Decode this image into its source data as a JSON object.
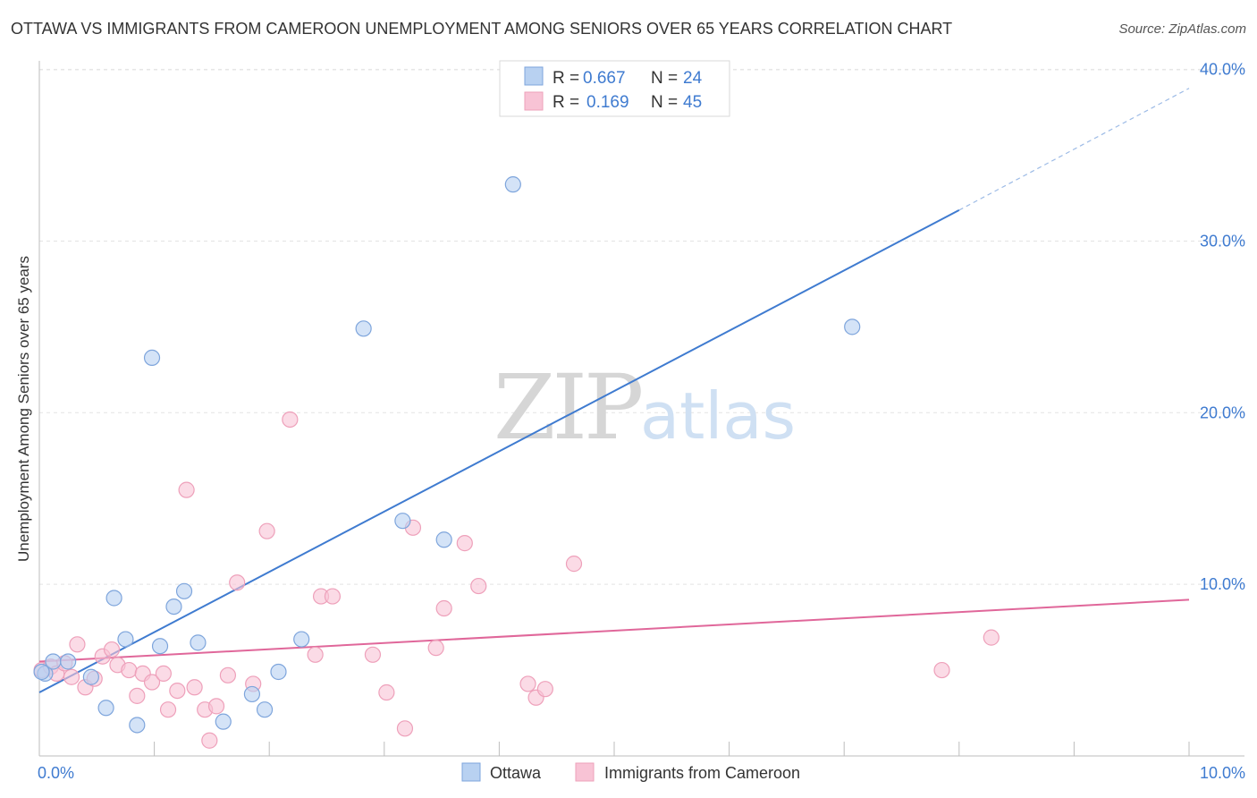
{
  "title": "OTTAWA VS IMMIGRANTS FROM CAMEROON UNEMPLOYMENT AMONG SENIORS OVER 65 YEARS CORRELATION CHART",
  "source": "Source: ZipAtlas.com",
  "watermark": {
    "zip": "ZIP",
    "atlas": "atlas"
  },
  "chart_data": {
    "type": "scatter",
    "title": "OTTAWA VS IMMIGRANTS FROM CAMEROON UNEMPLOYMENT AMONG SENIORS OVER 65 YEARS CORRELATION CHART",
    "xlabel": "",
    "ylabel": "Unemployment Among Seniors over 65 years",
    "xlim": [
      0,
      10
    ],
    "ylim": [
      0,
      40.5
    ],
    "x_tick_labels": [
      {
        "value": 0,
        "label": "0.0%"
      },
      {
        "value": 10,
        "label": "10.0%"
      }
    ],
    "y_ticks": [
      {
        "value": 10,
        "label": "10.0%"
      },
      {
        "value": 20,
        "label": "20.0%"
      },
      {
        "value": 30,
        "label": "30.0%"
      },
      {
        "value": 40,
        "label": "40.0%"
      }
    ],
    "x_minor_ticks": [
      1,
      2,
      3,
      4,
      5,
      6,
      7,
      8,
      9,
      10
    ],
    "grid": true,
    "legend_position": "bottom-center",
    "series": [
      {
        "name": "Ottawa",
        "color": "#3f7bd0",
        "fill": "#b8d1f1",
        "stroke": "#7ea5dc",
        "R": "0.667",
        "N": "24",
        "points": [
          [
            0.05,
            4.8
          ],
          [
            0.12,
            5.5
          ],
          [
            0.25,
            5.5
          ],
          [
            0.45,
            4.6
          ],
          [
            0.58,
            2.8
          ],
          [
            0.65,
            9.2
          ],
          [
            0.75,
            6.8
          ],
          [
            0.85,
            1.8
          ],
          [
            0.98,
            23.2
          ],
          [
            1.05,
            6.4
          ],
          [
            1.17,
            8.7
          ],
          [
            1.26,
            9.6
          ],
          [
            1.38,
            6.6
          ],
          [
            1.6,
            2.0
          ],
          [
            1.85,
            3.6
          ],
          [
            1.96,
            2.7
          ],
          [
            2.08,
            4.9
          ],
          [
            2.28,
            6.8
          ],
          [
            2.82,
            24.9
          ],
          [
            3.16,
            13.7
          ],
          [
            3.52,
            12.6
          ],
          [
            4.12,
            33.3
          ],
          [
            7.07,
            25.0
          ],
          [
            0.02,
            4.9
          ]
        ],
        "trend": {
          "x0": 0.0,
          "y0": 3.7,
          "x1": 8.0,
          "y1": 31.8,
          "dash_to_x": 10.0,
          "dash_to_y": 38.9
        }
      },
      {
        "name": "Immigrants from Cameroon",
        "color": "#e0679a",
        "fill": "#f8c3d5",
        "stroke": "#eea0ba",
        "R": "0.169",
        "N": "45",
        "points": [
          [
            0.02,
            5.0
          ],
          [
            0.1,
            5.2
          ],
          [
            0.15,
            4.8
          ],
          [
            0.22,
            5.4
          ],
          [
            0.28,
            4.6
          ],
          [
            0.33,
            6.5
          ],
          [
            0.4,
            4.0
          ],
          [
            0.48,
            4.5
          ],
          [
            0.55,
            5.8
          ],
          [
            0.63,
            6.2
          ],
          [
            0.68,
            5.3
          ],
          [
            0.78,
            5.0
          ],
          [
            0.85,
            3.5
          ],
          [
            0.9,
            4.8
          ],
          [
            0.98,
            4.3
          ],
          [
            1.08,
            4.8
          ],
          [
            1.12,
            2.7
          ],
          [
            1.2,
            3.8
          ],
          [
            1.28,
            15.5
          ],
          [
            1.35,
            4.0
          ],
          [
            1.44,
            2.7
          ],
          [
            1.48,
            0.9
          ],
          [
            1.54,
            2.9
          ],
          [
            1.64,
            4.7
          ],
          [
            1.72,
            10.1
          ],
          [
            1.86,
            4.2
          ],
          [
            1.98,
            13.1
          ],
          [
            2.18,
            19.6
          ],
          [
            2.4,
            5.9
          ],
          [
            2.45,
            9.3
          ],
          [
            2.55,
            9.3
          ],
          [
            2.9,
            5.9
          ],
          [
            3.02,
            3.7
          ],
          [
            3.18,
            1.6
          ],
          [
            3.25,
            13.3
          ],
          [
            3.45,
            6.3
          ],
          [
            3.52,
            8.6
          ],
          [
            3.7,
            12.4
          ],
          [
            3.82,
            9.9
          ],
          [
            4.25,
            4.2
          ],
          [
            4.32,
            3.4
          ],
          [
            4.4,
            3.9
          ],
          [
            4.65,
            11.2
          ],
          [
            7.85,
            5.0
          ],
          [
            8.28,
            6.9
          ]
        ],
        "trend": {
          "x0": 0.0,
          "y0": 5.5,
          "x1": 10.0,
          "y1": 9.1
        }
      }
    ]
  }
}
